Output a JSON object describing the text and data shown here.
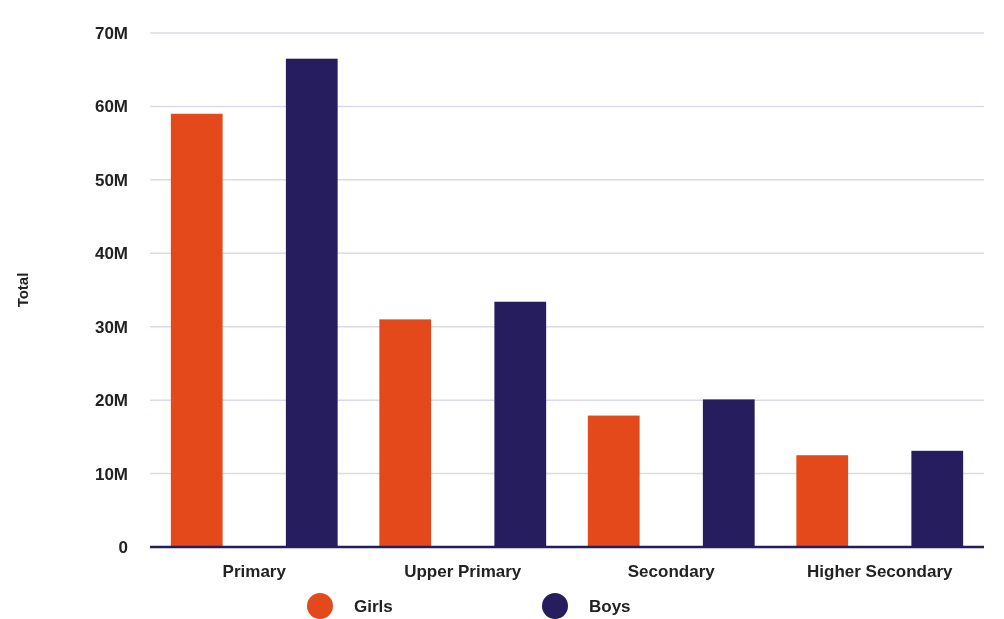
{
  "chart_data": {
    "type": "bar",
    "ylabel": "Total",
    "categories": [
      "Primary",
      "Upper Primary",
      "Secondary",
      "Higher Secondary"
    ],
    "series": [
      {
        "name": "Girls",
        "color": "#e4491c",
        "values": [
          59,
          31,
          17.9,
          12.5
        ]
      },
      {
        "name": "Boys",
        "color": "#261d5e",
        "values": [
          66.5,
          33.4,
          20.1,
          13.1
        ]
      }
    ],
    "ylim": [
      0,
      70
    ],
    "yticks": [
      {
        "value": 0,
        "label": "0"
      },
      {
        "value": 10,
        "label": "10M"
      },
      {
        "value": 20,
        "label": "20M"
      },
      {
        "value": 30,
        "label": "30M"
      },
      {
        "value": 40,
        "label": "40M"
      },
      {
        "value": 50,
        "label": "50M"
      },
      {
        "value": 60,
        "label": "60M"
      },
      {
        "value": 70,
        "label": "70M"
      }
    ],
    "grid": "y",
    "legend": "bottom"
  }
}
